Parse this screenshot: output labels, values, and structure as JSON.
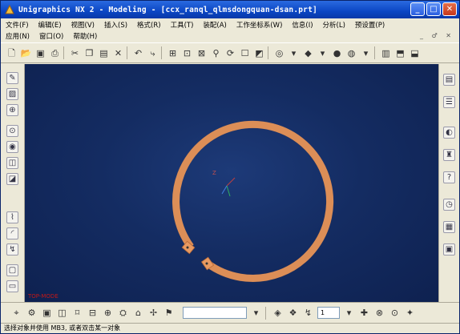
{
  "window": {
    "title": "Unigraphics NX 2 - Modeling - [ccx_ranql_qlmsdongquan-dsan.prt]",
    "minimize_glyph": "_",
    "maximize_glyph": "□",
    "close_glyph": "✕"
  },
  "menubar": {
    "row1": [
      {
        "label": "文件(F)"
      },
      {
        "label": "编辑(E)"
      },
      {
        "label": "视图(V)"
      },
      {
        "label": "插入(S)"
      },
      {
        "label": "格式(R)"
      },
      {
        "label": "工具(T)"
      },
      {
        "label": "装配(A)"
      },
      {
        "label": "工作坐标系(W)"
      },
      {
        "label": "信息(I)"
      },
      {
        "label": "分析(L)"
      },
      {
        "label": "预设置(P)"
      }
    ],
    "row2": [
      {
        "label": "应用(N)"
      },
      {
        "label": "窗口(O)"
      },
      {
        "label": "帮助(H)"
      }
    ],
    "mdi_controls": "_ ♂ ✕"
  },
  "viewport": {
    "view_label": "TOP-MODE",
    "background_color": "#142c62",
    "ring_color": "#e89a62",
    "ring_edge_color": "#b86a38"
  },
  "statusbar": {
    "text": "选择对象并使用 MB3, 或者双击某一对象"
  },
  "bottom_toolbar": {
    "spin_value": "1"
  }
}
